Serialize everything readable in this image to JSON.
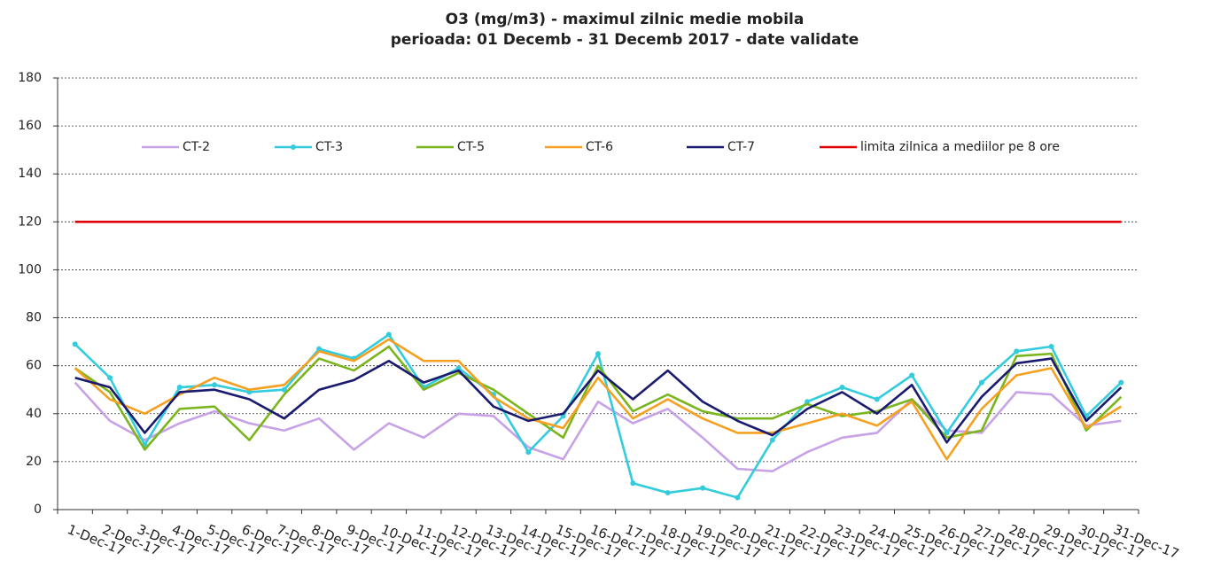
{
  "chart_data": {
    "type": "line",
    "title": "O3 (mg/m3) - maximul zilnic medie mobila",
    "subtitle": "perioada: 01 Decemb - 31 Decemb 2017 - date validate",
    "categories": [
      "1-Dec-17",
      "2-Dec-17",
      "3-Dec-17",
      "4-Dec-17",
      "5-Dec-17",
      "6-Dec-17",
      "7-Dec-17",
      "8-Dec-17",
      "9-Dec-17",
      "10-Dec-17",
      "11-Dec-17",
      "12-Dec-17",
      "13-Dec-17",
      "14-Dec-17",
      "15-Dec-17",
      "16-Dec-17",
      "17-Dec-17",
      "18-Dec-17",
      "19-Dec-17",
      "20-Dec-17",
      "21-Dec-17",
      "22-Dec-17",
      "23-Dec-17",
      "24-Dec-17",
      "25-Dec-17",
      "26-Dec-17",
      "27-Dec-17",
      "28-Dec-17",
      "29-Dec-17",
      "30-Dec-17",
      "31-Dec-17"
    ],
    "series": [
      {
        "name": "CT-2",
        "color": "#c8a2e6",
        "values": [
          53,
          37,
          29,
          36,
          41,
          36,
          33,
          38,
          25,
          36,
          30,
          40,
          39,
          26,
          21,
          45,
          36,
          42,
          30,
          17,
          16,
          24,
          30,
          32,
          46,
          33,
          32,
          49,
          48,
          35,
          37
        ]
      },
      {
        "name": "CT-3",
        "color": "#33ccdd",
        "marker": "circle",
        "values": [
          69,
          55,
          27,
          51,
          52,
          49,
          50,
          67,
          63,
          73,
          51,
          59,
          48,
          24,
          39,
          65,
          11,
          7,
          9,
          5,
          29,
          45,
          51,
          46,
          56,
          32,
          53,
          66,
          68,
          39,
          53
        ]
      },
      {
        "name": "CT-5",
        "color": "#7ab51d",
        "values": [
          59,
          49,
          25,
          42,
          43,
          29,
          48,
          63,
          58,
          68,
          50,
          57,
          50,
          40,
          30,
          60,
          41,
          48,
          41,
          38,
          38,
          44,
          39,
          41,
          46,
          30,
          33,
          64,
          65,
          33,
          47
        ]
      },
      {
        "name": "CT-6",
        "color": "#f5a020",
        "values": [
          59,
          46,
          40,
          48,
          55,
          50,
          52,
          66,
          62,
          71,
          62,
          62,
          47,
          38,
          34,
          55,
          38,
          46,
          38,
          32,
          32,
          36,
          40,
          35,
          45,
          21,
          42,
          56,
          59,
          34,
          43
        ]
      },
      {
        "name": "CT-7",
        "color": "#1a1a6e",
        "values": [
          55,
          51,
          32,
          49,
          50,
          46,
          38,
          50,
          54,
          62,
          53,
          58,
          43,
          37,
          40,
          58,
          46,
          58,
          45,
          37,
          31,
          42,
          49,
          40,
          52,
          28,
          47,
          61,
          63,
          37,
          51
        ]
      },
      {
        "name": "limita zilnica a mediilor pe 8 ore",
        "color": "#e00000",
        "values": [
          120,
          120,
          120,
          120,
          120,
          120,
          120,
          120,
          120,
          120,
          120,
          120,
          120,
          120,
          120,
          120,
          120,
          120,
          120,
          120,
          120,
          120,
          120,
          120,
          120,
          120,
          120,
          120,
          120,
          120,
          120
        ]
      }
    ],
    "ylim": [
      0,
      180
    ],
    "yticks": [
      0,
      20,
      40,
      60,
      80,
      100,
      120,
      140,
      160,
      180
    ],
    "grid": true
  }
}
